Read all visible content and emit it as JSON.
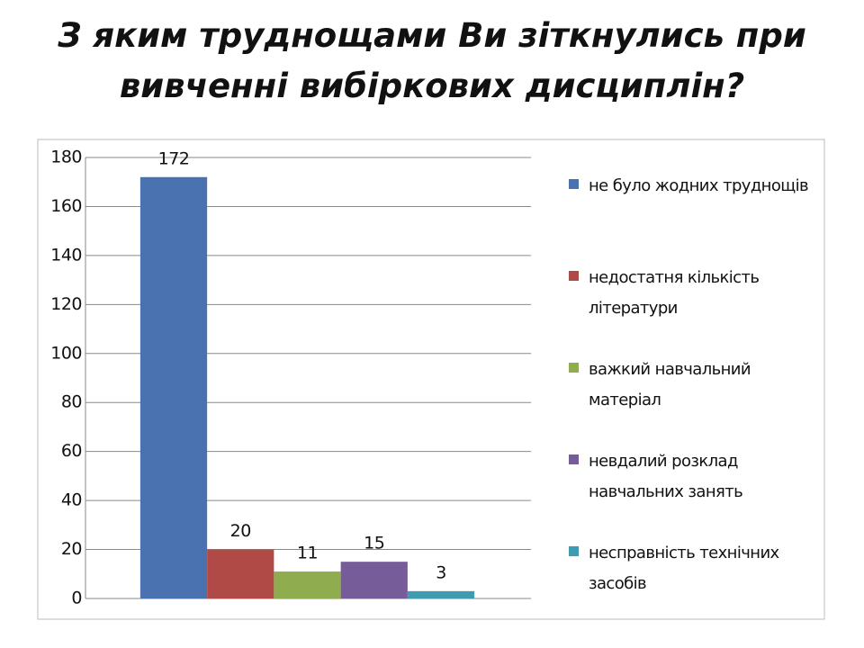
{
  "chart_data": {
    "type": "bar",
    "title": "З яким труднощами Ви зіткнулись при вивченні вибіркових дисциплін?",
    "categories": [
      null
    ],
    "series": [
      {
        "name": "не було жодних труднощів",
        "color": "#4a72b0",
        "values": [
          172
        ]
      },
      {
        "name": "недостатня кількість літератури",
        "color": "#b04a47",
        "values": [
          20
        ]
      },
      {
        "name": "важкий навчальний матеріал",
        "color": "#8fac4e",
        "values": [
          11
        ]
      },
      {
        "name": "невдалий розклад навчальних занять",
        "color": "#775c9a",
        "values": [
          15
        ]
      },
      {
        "name": "несправність технічних засобів",
        "color": "#3f9bb0",
        "values": [
          3
        ]
      }
    ],
    "ylim": [
      0,
      180
    ],
    "yticks": [
      0,
      20,
      40,
      60,
      80,
      100,
      120,
      140,
      160,
      180
    ],
    "grid": true,
    "legend": "right"
  }
}
